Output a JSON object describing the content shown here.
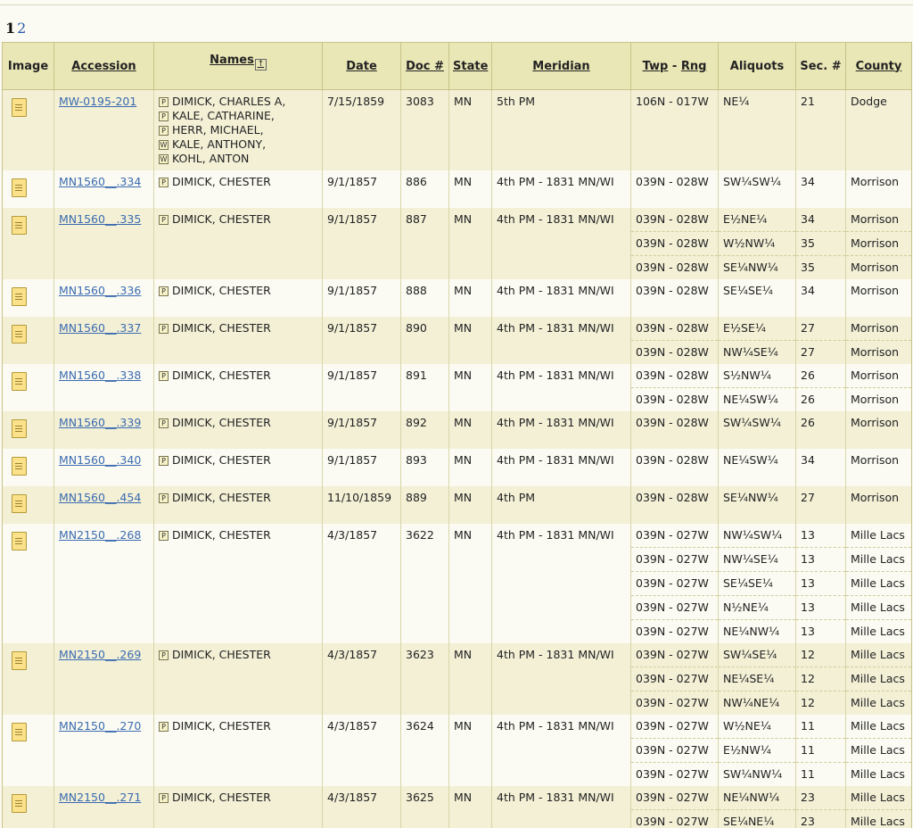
{
  "pagination": {
    "current": "1",
    "next": "2"
  },
  "columns": {
    "image": "Image",
    "accession": "Accession",
    "names": "Names",
    "date": "Date",
    "doc": "Doc #",
    "state": "State",
    "meridian": "Meridian",
    "twp": "Twp",
    "twp_sep": " - ",
    "rng": "Rng",
    "aliquots": "Aliquots",
    "sec": "Sec. #",
    "county": "County"
  },
  "records": [
    {
      "accession": "MW-0195-201",
      "names": [
        {
          "tag": "P",
          "name": "DIMICK, CHARLES A,"
        },
        {
          "tag": "P",
          "name": "KALE, CATHARINE,"
        },
        {
          "tag": "P",
          "name": "HERR, MICHAEL,"
        },
        {
          "tag": "W",
          "name": "KALE, ANTHONY,"
        },
        {
          "tag": "W",
          "name": "KOHL, ANTON"
        }
      ],
      "date": "7/15/1859",
      "doc": "3083",
      "state": "MN",
      "meridian": "5th PM",
      "lands": [
        {
          "twprng": "106N - 017W",
          "aliquot": "NE¼",
          "sec": "21",
          "county": "Dodge"
        }
      ]
    },
    {
      "accession": "MN1560__.334",
      "names": [
        {
          "tag": "P",
          "name": "DIMICK, CHESTER"
        }
      ],
      "date": "9/1/1857",
      "doc": "886",
      "state": "MN",
      "meridian": "4th PM - 1831 MN/WI",
      "lands": [
        {
          "twprng": "039N - 028W",
          "aliquot": "SW¼SW¼",
          "sec": "34",
          "county": "Morrison"
        }
      ]
    },
    {
      "accession": "MN1560__.335",
      "names": [
        {
          "tag": "P",
          "name": "DIMICK, CHESTER"
        }
      ],
      "date": "9/1/1857",
      "doc": "887",
      "state": "MN",
      "meridian": "4th PM - 1831 MN/WI",
      "lands": [
        {
          "twprng": "039N - 028W",
          "aliquot": "E½NE¼",
          "sec": "34",
          "county": "Morrison"
        },
        {
          "twprng": "039N - 028W",
          "aliquot": "W½NW¼",
          "sec": "35",
          "county": "Morrison"
        },
        {
          "twprng": "039N - 028W",
          "aliquot": "SE¼NW¼",
          "sec": "35",
          "county": "Morrison"
        }
      ]
    },
    {
      "accession": "MN1560__.336",
      "names": [
        {
          "tag": "P",
          "name": "DIMICK, CHESTER"
        }
      ],
      "date": "9/1/1857",
      "doc": "888",
      "state": "MN",
      "meridian": "4th PM - 1831 MN/WI",
      "lands": [
        {
          "twprng": "039N - 028W",
          "aliquot": "SE¼SE¼",
          "sec": "34",
          "county": "Morrison"
        }
      ]
    },
    {
      "accession": "MN1560__.337",
      "names": [
        {
          "tag": "P",
          "name": "DIMICK, CHESTER"
        }
      ],
      "date": "9/1/1857",
      "doc": "890",
      "state": "MN",
      "meridian": "4th PM - 1831 MN/WI",
      "lands": [
        {
          "twprng": "039N - 028W",
          "aliquot": "E½SE¼",
          "sec": "27",
          "county": "Morrison"
        },
        {
          "twprng": "039N - 028W",
          "aliquot": "NW¼SE¼",
          "sec": "27",
          "county": "Morrison"
        }
      ]
    },
    {
      "accession": "MN1560__.338",
      "names": [
        {
          "tag": "P",
          "name": "DIMICK, CHESTER"
        }
      ],
      "date": "9/1/1857",
      "doc": "891",
      "state": "MN",
      "meridian": "4th PM - 1831 MN/WI",
      "lands": [
        {
          "twprng": "039N - 028W",
          "aliquot": "S½NW¼",
          "sec": "26",
          "county": "Morrison"
        },
        {
          "twprng": "039N - 028W",
          "aliquot": "NE¼SW¼",
          "sec": "26",
          "county": "Morrison"
        }
      ]
    },
    {
      "accession": "MN1560__.339",
      "names": [
        {
          "tag": "P",
          "name": "DIMICK, CHESTER"
        }
      ],
      "date": "9/1/1857",
      "doc": "892",
      "state": "MN",
      "meridian": "4th PM - 1831 MN/WI",
      "lands": [
        {
          "twprng": "039N - 028W",
          "aliquot": "SW¼SW¼",
          "sec": "26",
          "county": "Morrison"
        }
      ]
    },
    {
      "accession": "MN1560__.340",
      "names": [
        {
          "tag": "P",
          "name": "DIMICK, CHESTER"
        }
      ],
      "date": "9/1/1857",
      "doc": "893",
      "state": "MN",
      "meridian": "4th PM - 1831 MN/WI",
      "lands": [
        {
          "twprng": "039N - 028W",
          "aliquot": "NE¼SW¼",
          "sec": "34",
          "county": "Morrison"
        }
      ]
    },
    {
      "accession": "MN1560__.454",
      "names": [
        {
          "tag": "P",
          "name": "DIMICK, CHESTER"
        }
      ],
      "date": "11/10/1859",
      "doc": "889",
      "state": "MN",
      "meridian": "4th PM",
      "lands": [
        {
          "twprng": "039N - 028W",
          "aliquot": "SE¼NW¼",
          "sec": "27",
          "county": "Morrison"
        }
      ]
    },
    {
      "accession": "MN2150__.268",
      "names": [
        {
          "tag": "P",
          "name": "DIMICK, CHESTER"
        }
      ],
      "date": "4/3/1857",
      "doc": "3622",
      "state": "MN",
      "meridian": "4th PM - 1831 MN/WI",
      "lands": [
        {
          "twprng": "039N - 027W",
          "aliquot": "NW¼SW¼",
          "sec": "13",
          "county": "Mille Lacs"
        },
        {
          "twprng": "039N - 027W",
          "aliquot": "NW¼SE¼",
          "sec": "13",
          "county": "Mille Lacs"
        },
        {
          "twprng": "039N - 027W",
          "aliquot": "SE¼SE¼",
          "sec": "13",
          "county": "Mille Lacs"
        },
        {
          "twprng": "039N - 027W",
          "aliquot": "N½NE¼",
          "sec": "13",
          "county": "Mille Lacs"
        },
        {
          "twprng": "039N - 027W",
          "aliquot": "NE¼NW¼",
          "sec": "13",
          "county": "Mille Lacs"
        }
      ]
    },
    {
      "accession": "MN2150__.269",
      "names": [
        {
          "tag": "P",
          "name": "DIMICK, CHESTER"
        }
      ],
      "date": "4/3/1857",
      "doc": "3623",
      "state": "MN",
      "meridian": "4th PM - 1831 MN/WI",
      "lands": [
        {
          "twprng": "039N - 027W",
          "aliquot": "SW¼SE¼",
          "sec": "12",
          "county": "Mille Lacs"
        },
        {
          "twprng": "039N - 027W",
          "aliquot": "NE¼SE¼",
          "sec": "12",
          "county": "Mille Lacs"
        },
        {
          "twprng": "039N - 027W",
          "aliquot": "NW¼NE¼",
          "sec": "12",
          "county": "Mille Lacs"
        }
      ]
    },
    {
      "accession": "MN2150__.270",
      "names": [
        {
          "tag": "P",
          "name": "DIMICK, CHESTER"
        }
      ],
      "date": "4/3/1857",
      "doc": "3624",
      "state": "MN",
      "meridian": "4th PM - 1831 MN/WI",
      "lands": [
        {
          "twprng": "039N - 027W",
          "aliquot": "W½NE¼",
          "sec": "11",
          "county": "Mille Lacs"
        },
        {
          "twprng": "039N - 027W",
          "aliquot": "E½NW¼",
          "sec": "11",
          "county": "Mille Lacs"
        },
        {
          "twprng": "039N - 027W",
          "aliquot": "SW¼NW¼",
          "sec": "11",
          "county": "Mille Lacs"
        }
      ]
    },
    {
      "accession": "MN2150__.271",
      "names": [
        {
          "tag": "P",
          "name": "DIMICK, CHESTER"
        }
      ],
      "date": "4/3/1857",
      "doc": "3625",
      "state": "MN",
      "meridian": "4th PM - 1831 MN/WI",
      "lands": [
        {
          "twprng": "039N - 027W",
          "aliquot": "NE¼NW¼",
          "sec": "23",
          "county": "Mille Lacs"
        },
        {
          "twprng": "039N - 027W",
          "aliquot": "SE¼NE¼",
          "sec": "23",
          "county": "Mille Lacs"
        }
      ]
    }
  ]
}
